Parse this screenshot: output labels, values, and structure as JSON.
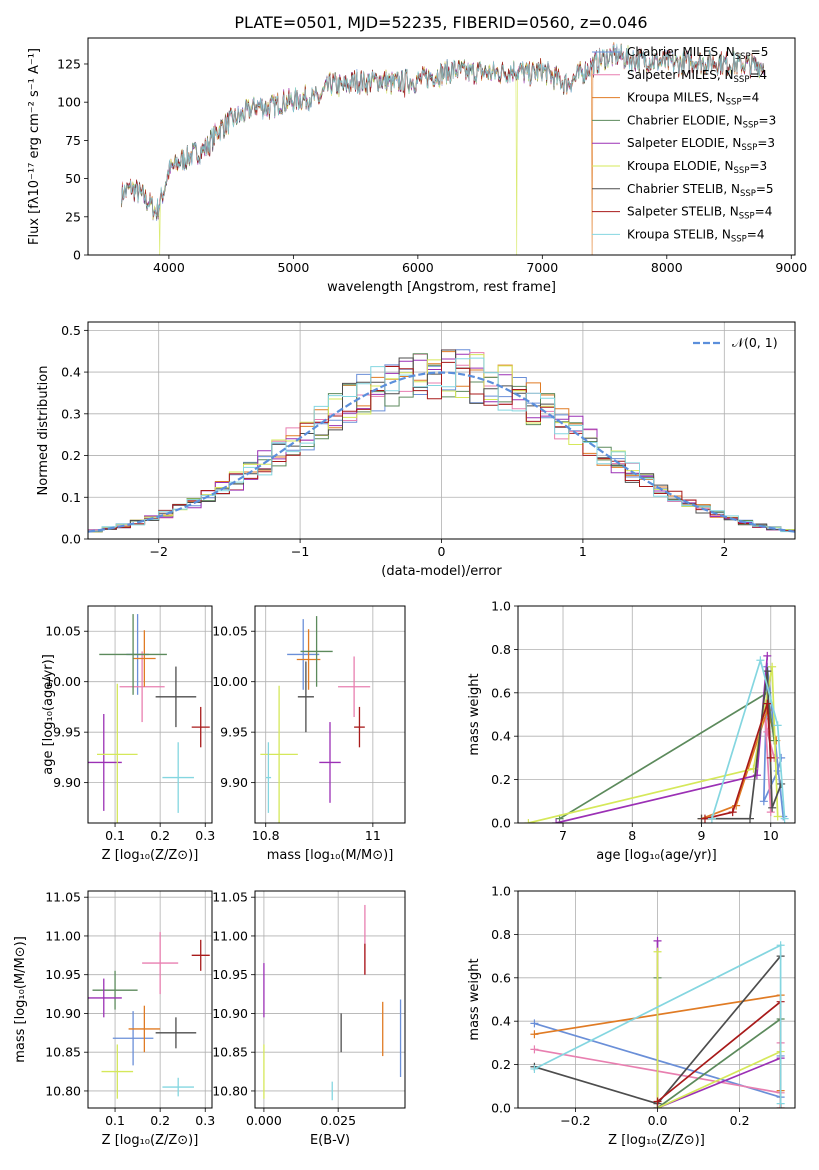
{
  "figure_title": "PLATE=0501, MJD=52235, FIBERID=0560, z=0.046",
  "colors": [
    "#6a8fd8",
    "#e87fb0",
    "#e07b24",
    "#5c8a5c",
    "#9b30b5",
    "#d5e85a",
    "#4d4d4d",
    "#a81a1a",
    "#84d6e0"
  ],
  "chart_data": [
    {
      "id": "spectrum",
      "type": "line",
      "xlabel": "wavelength [Angstrom, rest frame]",
      "ylabel": "Flux [fλ10⁻¹⁷ erg cm⁻² s⁻¹ A⁻¹]",
      "xlim": [
        3350,
        9030
      ],
      "ylim": [
        0,
        142
      ],
      "xticks": [
        4000,
        5000,
        6000,
        7000,
        8000,
        9000
      ],
      "yticks": [
        0,
        25,
        50,
        75,
        100,
        125
      ],
      "grid": false,
      "legend": "upper-right",
      "series": [
        {
          "name": "Chabrier MILES, N",
          "sub": "SSP",
          "suffix": "=5"
        },
        {
          "name": "Salpeter MILES, N",
          "sub": "SSP",
          "suffix": "=4"
        },
        {
          "name": "Kroupa MILES, N",
          "sub": "SSP",
          "suffix": "=4"
        },
        {
          "name": "Chabrier ELODIE, N",
          "sub": "SSP",
          "suffix": "=3"
        },
        {
          "name": "Salpeter ELODIE, N",
          "sub": "SSP",
          "suffix": "=3"
        },
        {
          "name": "Kroupa ELODIE, N",
          "sub": "SSP",
          "suffix": "=3"
        },
        {
          "name": "Chabrier STELIB, N",
          "sub": "SSP",
          "suffix": "=5"
        },
        {
          "name": "Salpeter STELIB, N",
          "sub": "SSP",
          "suffix": "=4"
        },
        {
          "name": "Kroupa STELIB, N",
          "sub": "SSP",
          "suffix": "=4"
        }
      ],
      "continuum": [
        [
          3620,
          40
        ],
        [
          3700,
          44
        ],
        [
          3800,
          38
        ],
        [
          3900,
          28
        ],
        [
          3950,
          40
        ],
        [
          4000,
          55
        ],
        [
          4100,
          62
        ],
        [
          4200,
          66
        ],
        [
          4300,
          70
        ],
        [
          4400,
          82
        ],
        [
          4500,
          88
        ],
        [
          4600,
          92
        ],
        [
          4700,
          98
        ],
        [
          4800,
          96
        ],
        [
          4900,
          100
        ],
        [
          5000,
          101
        ],
        [
          5100,
          103
        ],
        [
          5200,
          102
        ],
        [
          5300,
          112
        ],
        [
          5400,
          110
        ],
        [
          5500,
          114
        ],
        [
          5600,
          113
        ],
        [
          5700,
          115
        ],
        [
          5800,
          112
        ],
        [
          5900,
          114
        ],
        [
          6000,
          114
        ],
        [
          6100,
          117
        ],
        [
          6200,
          119
        ],
        [
          6300,
          121
        ],
        [
          6400,
          119
        ],
        [
          6500,
          120
        ],
        [
          6600,
          119
        ],
        [
          6700,
          120
        ],
        [
          6800,
          121
        ],
        [
          6900,
          118
        ],
        [
          7000,
          121
        ],
        [
          7100,
          116
        ],
        [
          7200,
          112
        ],
        [
          7300,
          118
        ],
        [
          7400,
          124
        ],
        [
          7500,
          129
        ],
        [
          7600,
          131
        ],
        [
          7700,
          128
        ],
        [
          7800,
          128
        ],
        [
          7900,
          127
        ],
        [
          8000,
          126
        ],
        [
          8100,
          125
        ],
        [
          8200,
          127
        ],
        [
          8300,
          126
        ],
        [
          8400,
          126
        ],
        [
          8500,
          125
        ],
        [
          8600,
          125
        ],
        [
          8700,
          124
        ],
        [
          8780,
          124
        ]
      ],
      "drops": [
        {
          "x": 3925,
          "series": 5,
          "to": 0
        },
        {
          "x": 5893,
          "series": 7,
          "to": 103
        },
        {
          "x": 6795,
          "series": 5,
          "to": 0
        },
        {
          "x": 7400,
          "series": 2,
          "to": 0
        }
      ]
    },
    {
      "id": "residuals",
      "type": "step-histogram",
      "xlabel": "(data-model)/error",
      "ylabel": "Normed distribution",
      "xlim": [
        -2.5,
        2.5
      ],
      "ylim": [
        0,
        0.52
      ],
      "xticks": [
        -2,
        -1,
        0,
        1,
        2
      ],
      "yticks": [
        0.0,
        0.1,
        0.2,
        0.3,
        0.4,
        0.5
      ],
      "grid": true,
      "legend": "upper-right",
      "reference": {
        "label": "𝒩(0, 1)",
        "mean": 0,
        "sigma": 1,
        "color": "#5b8fdb"
      },
      "bin_width": 0.1
    },
    {
      "id": "age-vs-z",
      "type": "errorbar",
      "xlabel": "Z [log₁₀(Z/Z⊙)]",
      "ylabel": "age  [log₁₀(age/yr)]",
      "xlim": [
        0.04,
        0.315
      ],
      "ylim": [
        9.86,
        10.075
      ],
      "xticks": [
        0.1,
        0.2,
        0.3
      ],
      "yticks": [
        9.9,
        9.95,
        10.0,
        10.05
      ],
      "grid": true,
      "points": [
        {
          "x": 0.15,
          "y": 10.027,
          "xerr": 0.025,
          "yerr": 0.04
        },
        {
          "x": 0.16,
          "y": 9.995,
          "xerr": 0.05,
          "yerr": 0.035
        },
        {
          "x": 0.165,
          "y": 10.023,
          "xerr": 0.025,
          "yerr": 0.028
        },
        {
          "x": 0.14,
          "y": 10.027,
          "xerr": 0.075,
          "yerr": 0.04
        },
        {
          "x": 0.075,
          "y": 9.92,
          "xerr": 0.04,
          "yerr": 0.048
        },
        {
          "x": 0.105,
          "y": 9.928,
          "xerr": 0.045,
          "yerr": 0.07
        },
        {
          "x": 0.235,
          "y": 9.985,
          "xerr": 0.045,
          "yerr": 0.03
        },
        {
          "x": 0.29,
          "y": 9.955,
          "xerr": 0.02,
          "yerr": 0.02
        },
        {
          "x": 0.24,
          "y": 9.905,
          "xerr": 0.035,
          "yerr": 0.035
        }
      ]
    },
    {
      "id": "age-vs-mass",
      "type": "errorbar",
      "xlabel": "mass [log₁₀(M/M⊙)]",
      "ylabel": "",
      "xlim": [
        10.78,
        11.06
      ],
      "ylim": [
        9.86,
        10.075
      ],
      "xticks": [
        10.8,
        11.0
      ],
      "yticks": [
        9.9,
        9.95,
        10.0,
        10.05
      ],
      "grid": true,
      "points": [
        {
          "x": 10.87,
          "y": 10.027,
          "xerr": 0.03,
          "yerr": 0.035
        },
        {
          "x": 10.965,
          "y": 9.995,
          "xerr": 0.03,
          "yerr": 0.03
        },
        {
          "x": 10.88,
          "y": 10.022,
          "xerr": 0.022,
          "yerr": 0.03
        },
        {
          "x": 10.895,
          "y": 10.03,
          "xerr": 0.03,
          "yerr": 0.035
        },
        {
          "x": 10.92,
          "y": 9.92,
          "xerr": 0.02,
          "yerr": 0.04
        },
        {
          "x": 10.825,
          "y": 9.928,
          "xerr": 0.035,
          "yerr": 0.068
        },
        {
          "x": 10.875,
          "y": 9.985,
          "xerr": 0.015,
          "yerr": 0.035
        },
        {
          "x": 10.975,
          "y": 9.955,
          "xerr": 0.01,
          "yerr": 0.02
        },
        {
          "x": 10.805,
          "y": 9.905,
          "xerr": 0.005,
          "yerr": 0.035
        }
      ]
    },
    {
      "id": "weight-vs-age",
      "type": "line",
      "xlabel": "age  [log₁₀(age/yr)]",
      "ylabel": "mass weight",
      "xlim": [
        6.35,
        10.35
      ],
      "ylim": [
        0,
        1
      ],
      "xticks": [
        7,
        8,
        9,
        10
      ],
      "yticks": [
        0.0,
        0.2,
        0.4,
        0.6,
        0.8,
        1.0
      ],
      "grid": true,
      "series": [
        [
          [
            10.18,
            0.03
          ],
          [
            9.95,
            0.72
          ],
          [
            9.9,
            0.1
          ],
          [
            10.1,
            0.24
          ],
          [
            10.15,
            0.3
          ]
        ],
        [
          [
            10.0,
            0.05
          ],
          [
            9.92,
            0.48
          ],
          [
            9.95,
            0.42
          ],
          [
            10.05,
            0.3
          ]
        ],
        [
          [
            9.0,
            0.02
          ],
          [
            9.5,
            0.08
          ],
          [
            9.95,
            0.52
          ],
          [
            10.08,
            0.38
          ]
        ],
        [
          [
            6.95,
            0.02
          ],
          [
            9.95,
            0.6
          ],
          [
            10.05,
            0.38
          ]
        ],
        [
          [
            6.9,
            0.0
          ],
          [
            9.8,
            0.22
          ],
          [
            9.95,
            0.77
          ]
        ],
        [
          [
            6.5,
            0.0
          ],
          [
            9.75,
            0.25
          ],
          [
            10.02,
            0.72
          ],
          [
            10.1,
            0.03
          ]
        ],
        [
          [
            9.0,
            0.02
          ],
          [
            9.7,
            0.02
          ],
          [
            9.95,
            0.7
          ],
          [
            10.02,
            0.07
          ],
          [
            10.15,
            0.18
          ]
        ],
        [
          [
            9.05,
            0.02
          ],
          [
            9.45,
            0.05
          ],
          [
            9.95,
            0.55
          ],
          [
            10.0,
            0.3
          ]
        ],
        [
          [
            9.15,
            0.02
          ],
          [
            9.85,
            0.75
          ],
          [
            10.1,
            0.45
          ],
          [
            10.2,
            0.02
          ]
        ]
      ]
    },
    {
      "id": "mass-vs-z",
      "type": "errorbar",
      "xlabel": "Z [log₁₀(Z/Z⊙)]",
      "ylabel": "mass [log₁₀(M/M⊙)]",
      "xlim": [
        0.04,
        0.315
      ],
      "ylim": [
        10.778,
        11.058
      ],
      "xticks": [
        0.1,
        0.2,
        0.3
      ],
      "yticks": [
        10.8,
        10.85,
        10.9,
        10.95,
        11.0,
        11.05
      ],
      "grid": true,
      "points": [
        {
          "x": 0.14,
          "y": 10.868,
          "xerr": 0.045,
          "yerr": 0.035
        },
        {
          "x": 0.2,
          "y": 10.965,
          "xerr": 0.04,
          "yerr": 0.04
        },
        {
          "x": 0.165,
          "y": 10.88,
          "xerr": 0.035,
          "yerr": 0.03
        },
        {
          "x": 0.1,
          "y": 10.93,
          "xerr": 0.05,
          "yerr": 0.025
        },
        {
          "x": 0.075,
          "y": 10.92,
          "xerr": 0.04,
          "yerr": 0.025
        },
        {
          "x": 0.105,
          "y": 10.825,
          "xerr": 0.035,
          "yerr": 0.035
        },
        {
          "x": 0.235,
          "y": 10.875,
          "xerr": 0.045,
          "yerr": 0.02
        },
        {
          "x": 0.29,
          "y": 10.975,
          "xerr": 0.02,
          "yerr": 0.02
        },
        {
          "x": 0.24,
          "y": 10.805,
          "xerr": 0.035,
          "yerr": 0.012
        }
      ]
    },
    {
      "id": "mass-vs-ebv",
      "type": "errorbar",
      "xlabel": "E(B-V)",
      "ylabel": "",
      "xlim": [
        -0.003,
        0.0475
      ],
      "ylim": [
        10.778,
        11.058
      ],
      "xticks": [
        0.0,
        0.025
      ],
      "xtick_labels": [
        "0.000",
        "0.025"
      ],
      "yticks": [
        10.8,
        10.85,
        10.9,
        10.95,
        11.0,
        11.05
      ],
      "grid": true,
      "points": [
        {
          "x": 0.046,
          "y": 10.868,
          "xerr": 0,
          "yerr": 0.05
        },
        {
          "x": 0.034,
          "y": 10.995,
          "xerr": 0,
          "yerr": 0.045
        },
        {
          "x": 0.04,
          "y": 10.88,
          "xerr": 0,
          "yerr": 0.035
        },
        {
          "x": 0.0,
          "y": 10.85,
          "xerr": 0,
          "yerr": 0.0
        },
        {
          "x": 0.0,
          "y": 10.93,
          "xerr": 0,
          "yerr": 0.035
        },
        {
          "x": 0.0,
          "y": 10.825,
          "xerr": 0,
          "yerr": 0.035
        },
        {
          "x": 0.026,
          "y": 10.875,
          "xerr": 0,
          "yerr": 0.025
        },
        {
          "x": 0.034,
          "y": 10.97,
          "xerr": 0,
          "yerr": 0.02
        },
        {
          "x": 0.023,
          "y": 10.8,
          "xerr": 0,
          "yerr": 0.012
        }
      ]
    },
    {
      "id": "weight-vs-z",
      "type": "line",
      "xlabel": "Z [log₁₀(Z/Z⊙)]",
      "ylabel": "mass weight",
      "xlim": [
        -0.34,
        0.335
      ],
      "ylim": [
        0,
        1
      ],
      "xticks": [
        -0.2,
        0.0,
        0.2
      ],
      "xtick_labels": [
        "−0.2",
        "0.0",
        "0.2"
      ],
      "yticks": [
        0.0,
        0.2,
        0.4,
        0.6,
        0.8,
        1.0
      ],
      "grid": true,
      "series": [
        [
          [
            -0.3,
            0.39
          ],
          [
            0.3,
            0.05
          ],
          [
            0.3,
            0.24
          ]
        ],
        [
          [
            -0.3,
            0.27
          ],
          [
            0.3,
            0.07
          ],
          [
            0.3,
            0.3
          ]
        ],
        [
          [
            -0.3,
            0.34
          ],
          [
            0.3,
            0.52
          ],
          [
            0.3,
            0.08
          ]
        ],
        [
          [
            0.0,
            0.6
          ],
          [
            0.0,
            0.0
          ],
          [
            0.3,
            0.41
          ]
        ],
        [
          [
            0.0,
            0.77
          ],
          [
            0.0,
            0.0
          ],
          [
            0.3,
            0.23
          ]
        ],
        [
          [
            0.0,
            0.72
          ],
          [
            0.0,
            0.0
          ],
          [
            0.3,
            0.26
          ]
        ],
        [
          [
            -0.3,
            0.19
          ],
          [
            0.0,
            0.02
          ],
          [
            0.3,
            0.7
          ]
        ],
        [
          [
            0.0,
            0.03
          ],
          [
            0.3,
            0.49
          ],
          [
            0.3,
            0.0
          ]
        ],
        [
          [
            -0.3,
            0.18
          ],
          [
            0.3,
            0.75
          ],
          [
            0.3,
            0.02
          ]
        ]
      ]
    }
  ]
}
